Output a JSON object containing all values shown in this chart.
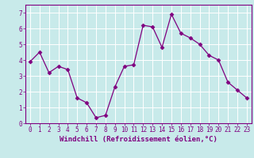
{
  "x": [
    0,
    1,
    2,
    3,
    4,
    5,
    6,
    7,
    8,
    9,
    10,
    11,
    12,
    13,
    14,
    15,
    16,
    17,
    18,
    19,
    20,
    21,
    22,
    23
  ],
  "y": [
    3.9,
    4.5,
    3.2,
    3.6,
    3.4,
    1.6,
    1.3,
    0.35,
    0.5,
    2.3,
    3.6,
    3.7,
    6.2,
    6.1,
    4.8,
    6.9,
    5.7,
    5.4,
    5.0,
    4.3,
    4.0,
    2.6,
    2.1,
    1.6
  ],
  "line_color": "#800080",
  "marker": "D",
  "marker_size": 2.5,
  "bg_color": "#c8eaea",
  "grid_color": "#ffffff",
  "xlabel": "Windchill (Refroidissement éolien,°C)",
  "ylabel": "",
  "xlim": [
    -0.5,
    23.5
  ],
  "ylim": [
    0,
    7.5
  ],
  "yticks": [
    0,
    1,
    2,
    3,
    4,
    5,
    6,
    7
  ],
  "xticks": [
    0,
    1,
    2,
    3,
    4,
    5,
    6,
    7,
    8,
    9,
    10,
    11,
    12,
    13,
    14,
    15,
    16,
    17,
    18,
    19,
    20,
    21,
    22,
    23
  ],
  "tick_color": "#800080",
  "axis_color": "#800080",
  "label_fontsize": 6.5,
  "tick_fontsize": 5.5
}
